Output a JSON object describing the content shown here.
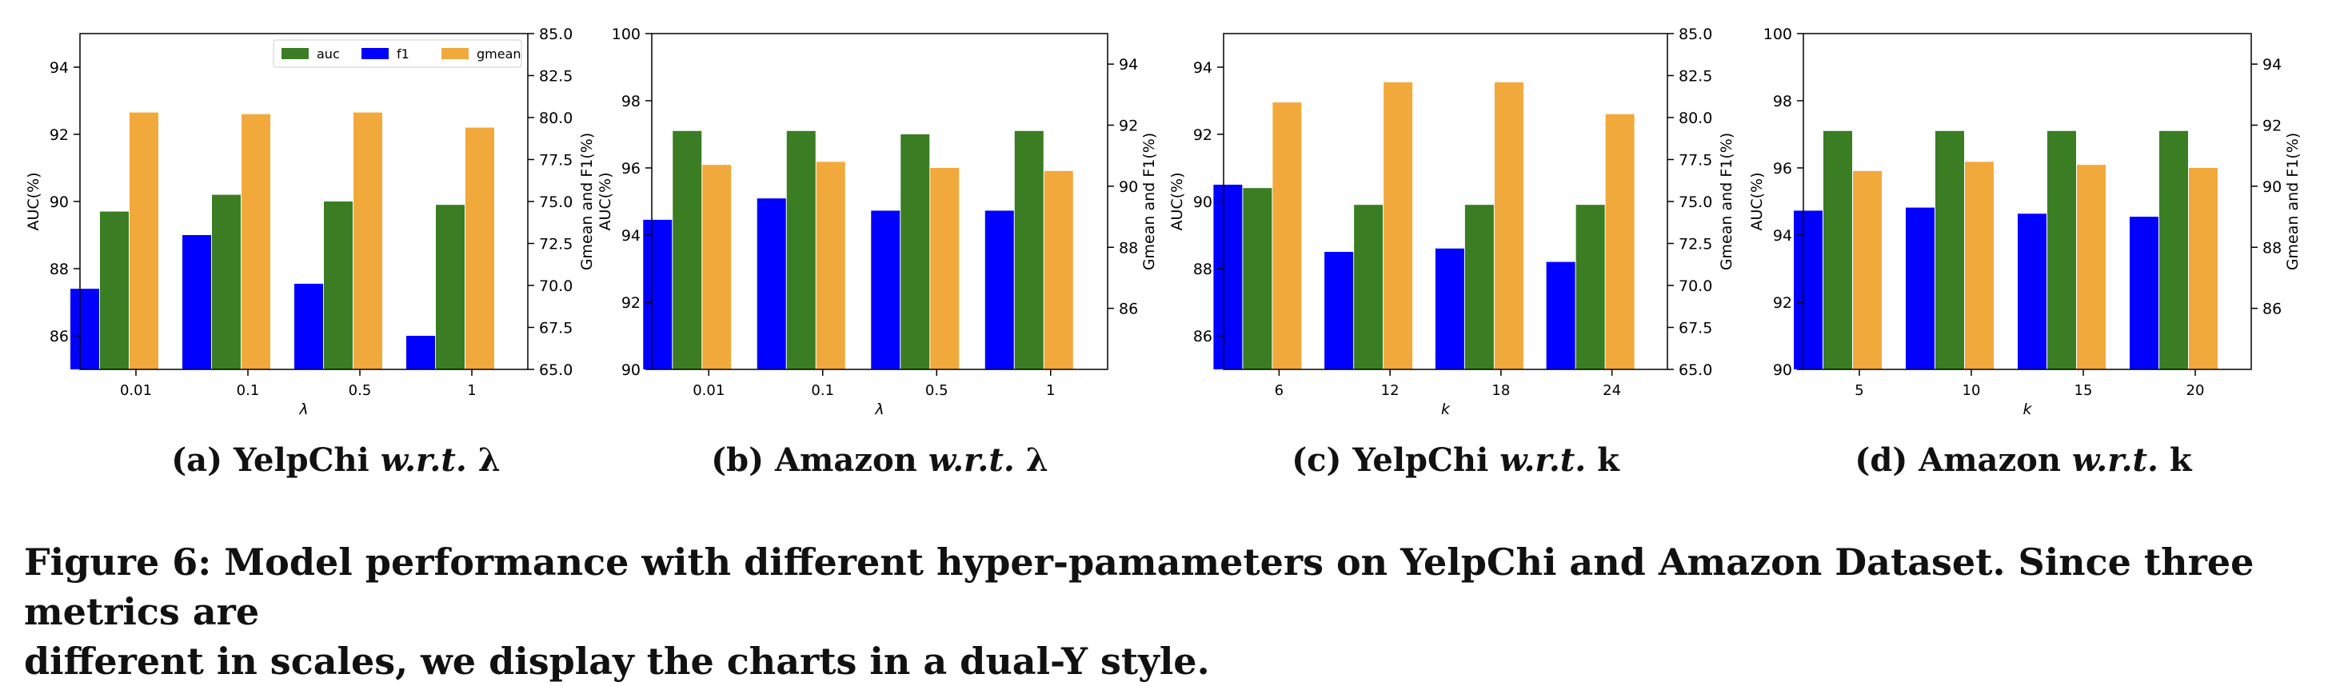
{
  "chart_data": [
    {
      "type": "bar",
      "dual_y": true,
      "categories": [
        "0.01",
        "0.1",
        "0.5",
        "1"
      ],
      "xlabel": "λ",
      "ylabel_left": "AUC(%)",
      "ylabel_right": "Gmean and F1(%)",
      "ylim_left": [
        85,
        95
      ],
      "yticks_left": [
        "86",
        "88",
        "90",
        "92",
        "94"
      ],
      "ylim_right": [
        65,
        85
      ],
      "yticks_right": [
        "65.0",
        "67.5",
        "70.0",
        "72.5",
        "75.0",
        "77.5",
        "80.0",
        "82.5",
        "85.0"
      ],
      "legend": {
        "placement": "top-right",
        "entries": [
          "auc",
          "f1",
          "gmean"
        ]
      },
      "series": [
        {
          "name": "f1",
          "axis": "right",
          "values": [
            69.8,
            73.0,
            70.1,
            67.0
          ]
        },
        {
          "name": "auc",
          "axis": "left",
          "values": [
            89.7,
            90.2,
            90.0,
            89.9
          ]
        },
        {
          "name": "gmean",
          "axis": "right",
          "values": [
            80.3,
            80.2,
            80.3,
            79.4
          ]
        }
      ]
    },
    {
      "type": "bar",
      "dual_y": true,
      "categories": [
        "0.01",
        "0.1",
        "0.5",
        "1"
      ],
      "xlabel": "λ",
      "ylabel_left": "AUC(%)",
      "ylabel_right": "Gmean and F1(%)",
      "ylim_left": [
        90,
        100
      ],
      "yticks_left": [
        "90",
        "92",
        "94",
        "96",
        "98",
        "100"
      ],
      "ylim_right": [
        84,
        95
      ],
      "yticks_right": [
        "86",
        "88",
        "90",
        "92",
        "94"
      ],
      "series": [
        {
          "name": "f1",
          "axis": "right",
          "values": [
            88.9,
            89.6,
            89.2,
            89.2
          ]
        },
        {
          "name": "auc",
          "axis": "left",
          "values": [
            97.1,
            97.1,
            97.0,
            97.1
          ]
        },
        {
          "name": "gmean",
          "axis": "right",
          "values": [
            90.7,
            90.8,
            90.6,
            90.5
          ]
        }
      ]
    },
    {
      "type": "bar",
      "dual_y": true,
      "categories": [
        "6",
        "12",
        "18",
        "24"
      ],
      "xlabel": "k",
      "ylabel_left": "AUC(%)",
      "ylabel_right": "Gmean and F1(%)",
      "ylim_left": [
        85,
        95
      ],
      "yticks_left": [
        "86",
        "88",
        "90",
        "92",
        "94"
      ],
      "ylim_right": [
        65,
        85
      ],
      "yticks_right": [
        "65.0",
        "67.5",
        "70.0",
        "72.5",
        "75.0",
        "77.5",
        "80.0",
        "82.5",
        "85.0"
      ],
      "series": [
        {
          "name": "f1",
          "axis": "right",
          "values": [
            76.0,
            72.0,
            72.2,
            71.4
          ]
        },
        {
          "name": "auc",
          "axis": "left",
          "values": [
            90.4,
            89.9,
            89.9,
            89.9
          ]
        },
        {
          "name": "gmean",
          "axis": "right",
          "values": [
            80.9,
            82.1,
            82.1,
            80.2
          ]
        }
      ]
    },
    {
      "type": "bar",
      "dual_y": true,
      "categories": [
        "5",
        "10",
        "15",
        "20"
      ],
      "xlabel": "k",
      "ylabel_left": "AUC(%)",
      "ylabel_right": "Gmean and F1(%)",
      "ylim_left": [
        90,
        100
      ],
      "yticks_left": [
        "90",
        "92",
        "94",
        "96",
        "98",
        "100"
      ],
      "ylim_right": [
        84,
        95
      ],
      "yticks_right": [
        "86",
        "88",
        "90",
        "92",
        "94"
      ],
      "series": [
        {
          "name": "f1",
          "axis": "right",
          "values": [
            89.2,
            89.3,
            89.1,
            89.0
          ]
        },
        {
          "name": "auc",
          "axis": "left",
          "values": [
            97.1,
            97.1,
            97.1,
            97.1
          ]
        },
        {
          "name": "gmean",
          "axis": "right",
          "values": [
            90.5,
            90.8,
            90.7,
            90.6
          ]
        }
      ]
    }
  ],
  "colors": {
    "auc": "#3a7d22",
    "f1": "#0000ff",
    "gmean": "#f2a93b"
  },
  "subcaptions": [
    {
      "label": "(a) YelpChi ",
      "emph": "w.r.t.",
      "param": " λ"
    },
    {
      "label": "(b) Amazon ",
      "emph": "w.r.t.",
      "param": " λ"
    },
    {
      "label": "(c) YelpChi ",
      "emph": "w.r.t.",
      "param": " k"
    },
    {
      "label": "(d) Amazon ",
      "emph": "w.r.t.",
      "param": " k"
    }
  ],
  "figure_caption": {
    "line1": "Figure 6: Model performance with different hyper-pamameters on YelpChi and Amazon Dataset. Since three metrics are",
    "line2": "different in scales, we display the charts in a dual-Y style."
  }
}
